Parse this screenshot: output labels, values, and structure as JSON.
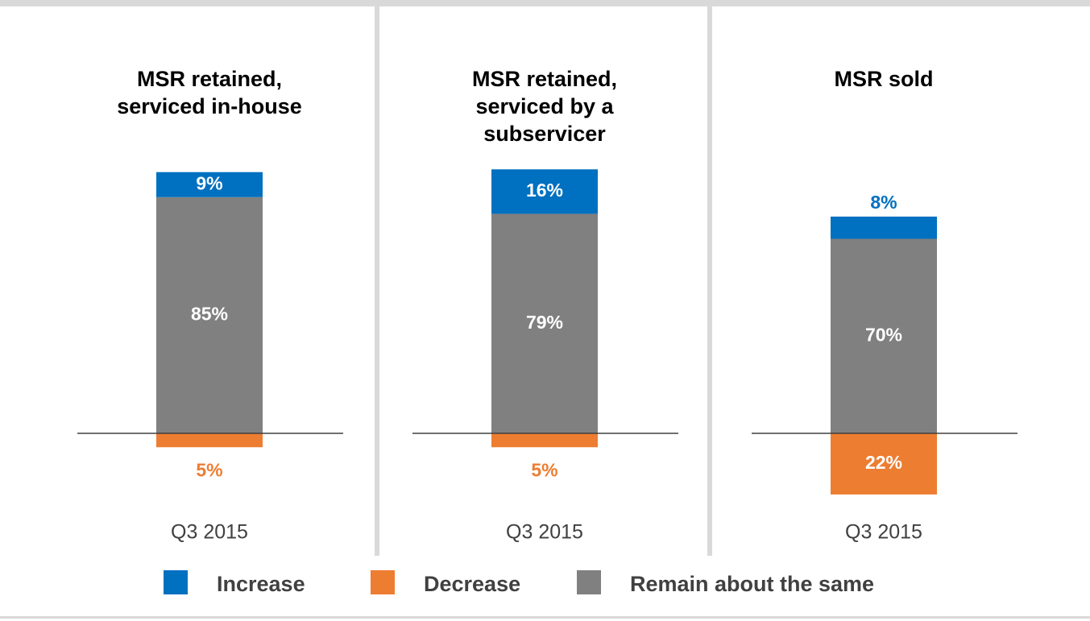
{
  "chart_data": [
    {
      "type": "bar",
      "title": [
        "MSR retained,",
        "serviced in-house"
      ],
      "categories": [
        "Q3 2015"
      ],
      "series": [
        {
          "name": "Increase",
          "color": "#0070c0",
          "values": [
            9
          ],
          "value_labels": [
            "9%"
          ],
          "direction": "up"
        },
        {
          "name": "Decrease",
          "color": "#ed7d31",
          "values": [
            5
          ],
          "value_labels": [
            "5%"
          ],
          "direction": "down"
        },
        {
          "name": "Remain about the same",
          "color": "#808080",
          "values": [
            85
          ],
          "value_labels": [
            "85%"
          ],
          "direction": "up"
        }
      ],
      "ylim": [
        -28,
        100
      ]
    },
    {
      "type": "bar",
      "title": [
        "MSR retained,",
        "serviced by a",
        "subservicer"
      ],
      "categories": [
        "Q3 2015"
      ],
      "series": [
        {
          "name": "Increase",
          "color": "#0070c0",
          "values": [
            16
          ],
          "value_labels": [
            "16%"
          ],
          "direction": "up"
        },
        {
          "name": "Decrease",
          "color": "#ed7d31",
          "values": [
            5
          ],
          "value_labels": [
            "5%"
          ],
          "direction": "down"
        },
        {
          "name": "Remain about the same",
          "color": "#808080",
          "values": [
            79
          ],
          "value_labels": [
            "79%"
          ],
          "direction": "up"
        }
      ],
      "ylim": [
        -28,
        100
      ]
    },
    {
      "type": "bar",
      "title": [
        "MSR sold"
      ],
      "categories": [
        "Q3 2015"
      ],
      "series": [
        {
          "name": "Increase",
          "color": "#0070c0",
          "values": [
            8
          ],
          "value_labels": [
            "8%"
          ],
          "direction": "up"
        },
        {
          "name": "Decrease",
          "color": "#ed7d31",
          "values": [
            22
          ],
          "value_labels": [
            "22%"
          ],
          "direction": "down"
        },
        {
          "name": "Remain about the same",
          "color": "#808080",
          "values": [
            70
          ],
          "value_labels": [
            "70%"
          ],
          "direction": "up"
        }
      ],
      "ylim": [
        -28,
        100
      ]
    }
  ]
}
